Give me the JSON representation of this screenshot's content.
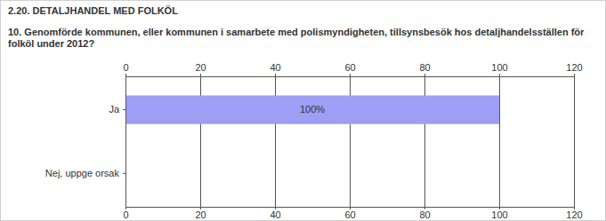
{
  "chart_data": {
    "type": "bar",
    "orientation": "horizontal",
    "title": "2.20. DETALJHANDEL MED FOLKÖL",
    "subtitle": "10. Genomförde kommunen, eller kommunen i samarbete med polismyndigheten, tillsynsbesök hos detaljhandelsställen för folköl under 2012?",
    "categories": [
      "Ja",
      "Nej, uppge orsak"
    ],
    "values": [
      100,
      0
    ],
    "value_labels": [
      "100%",
      null
    ],
    "data_labels": true,
    "color": "#9e9ef5",
    "xlim": [
      0,
      120
    ],
    "xticks": [
      0,
      20,
      40,
      60,
      80,
      100,
      120
    ],
    "grid": true
  }
}
